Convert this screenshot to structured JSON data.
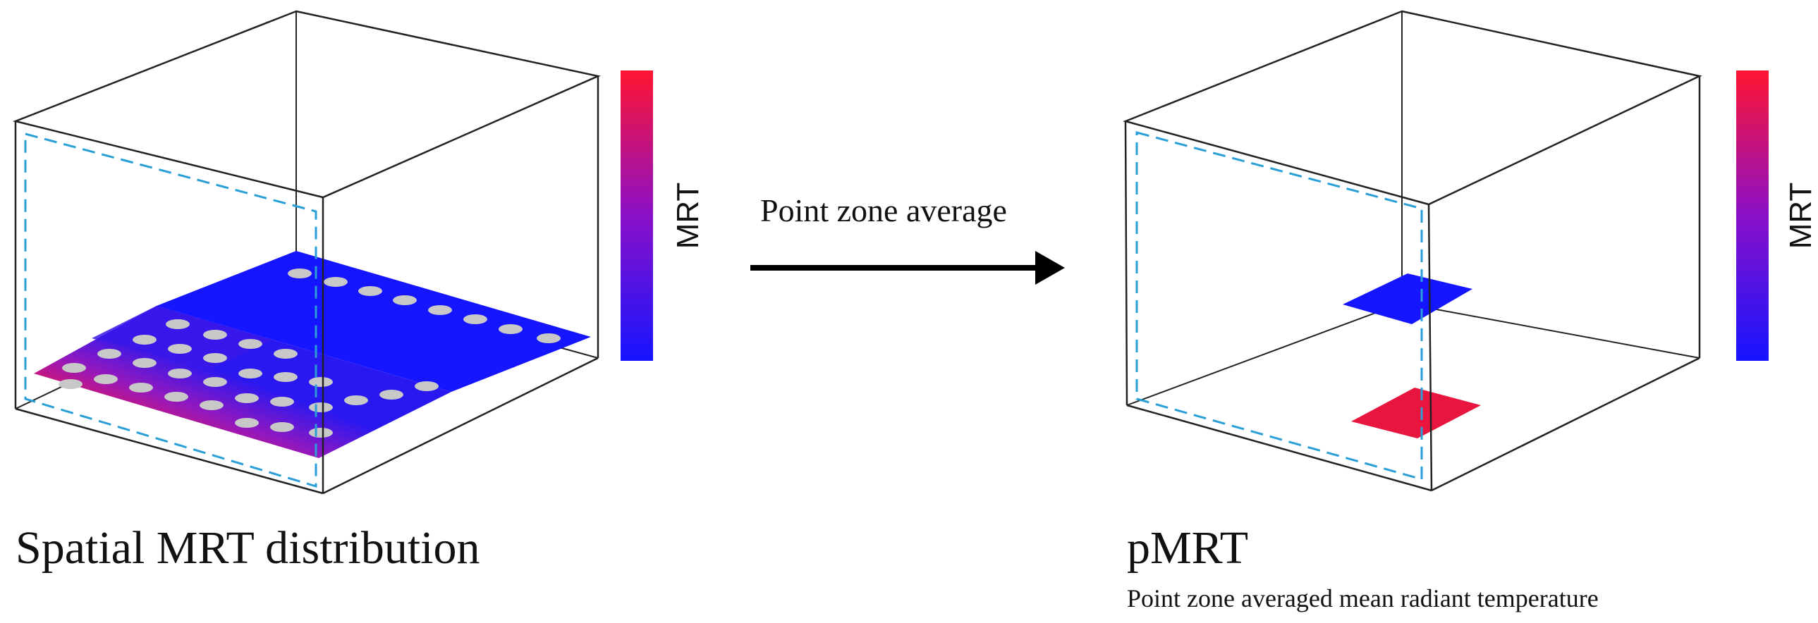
{
  "left_panel": {
    "caption": "Spatial MRT distribution",
    "colorbar_label": "MRT"
  },
  "arrow": {
    "label": "Point zone average"
  },
  "right_panel": {
    "caption_title": "pMRT",
    "caption_subtitle": "Point zone averaged mean radiant temperature",
    "colorbar_label": "MRT"
  },
  "colors": {
    "cold": "#1515ff",
    "hot": "#ff1535",
    "box_edge": "#222222",
    "dashed_outline": "#2a9fd6",
    "sensor_dot": "#c8c8c8"
  }
}
